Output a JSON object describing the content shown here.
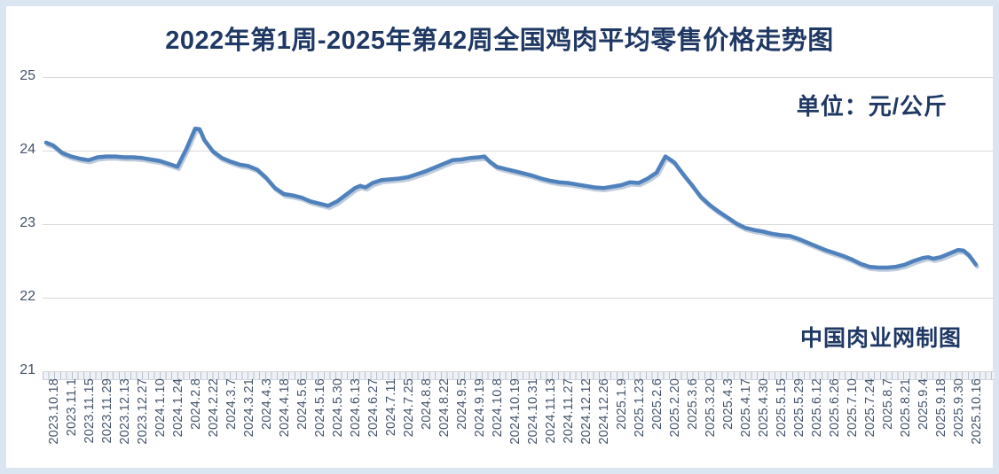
{
  "header": {
    "title": "2022年第1周-2025年第42周全国鸡肉平均零售价格走势图"
  },
  "annotations": {
    "unit": "单位：元/公斤",
    "credit": "中国肉业网制图"
  },
  "colors": {
    "title_text": "#1f3864",
    "line": "#4f81bd",
    "line_shadow": "#8aa3c0",
    "gridline": "#d9d9d9",
    "axis_text": "#44546a",
    "frame_border": "#dbe5f1",
    "background": "#ffffff"
  },
  "chart_data": {
    "type": "line",
    "title": "2022年第1周-2025年第42周全国鸡肉平均零售价格走势图",
    "xlabel": "",
    "ylabel": "元/公斤",
    "ylim": [
      21,
      25
    ],
    "yticks": [
      25,
      24,
      23,
      22,
      21
    ],
    "grid": "horizontal",
    "legend": "none",
    "categories": [
      "2023.10.18",
      "2023.11.1",
      "2023.11.15",
      "2023.11.29",
      "2023.12.13",
      "2023.12.27",
      "2024.1.10",
      "2024.1.24",
      "2024.2.8",
      "2024.2.22",
      "2024.3.7",
      "2024.3.21",
      "2024.4.3",
      "2024.4.18",
      "2024.5.6",
      "2024.5.16",
      "2024.5.30",
      "2024.6.13",
      "2024.6.27",
      "2024.7.11",
      "2024.7.25",
      "2024.8.8",
      "2024.8.22",
      "2024.9.5",
      "2024.9.19",
      "2024.10.8",
      "2024.10.19",
      "2024.10.31",
      "2024.11.13",
      "2024.11.27",
      "2024.12.12",
      "2024.12.26",
      "2025.1.9",
      "2025.1.23",
      "2025.2.6",
      "2025.2.20",
      "2025.3.6",
      "2025.3.20",
      "2025.4.3",
      "2025.4.17",
      "2025.4.30",
      "2025.5.15",
      "2025.5.29",
      "2025.6.12",
      "2025.6.26",
      "2025.7.10",
      "2025.7.24",
      "2025.8.7",
      "2025.8.21",
      "2025.9.4",
      "2025.9.18",
      "2025.9.30",
      "2025.10.16"
    ],
    "series": [
      {
        "name": "全国鸡肉平均零售价格",
        "points": [
          [
            -0.4,
            24.11
          ],
          [
            0,
            24.07
          ],
          [
            0.5,
            23.97
          ],
          [
            1,
            23.92
          ],
          [
            1.5,
            23.89
          ],
          [
            2,
            23.87
          ],
          [
            2.5,
            23.91
          ],
          [
            3,
            23.92
          ],
          [
            3.5,
            23.92
          ],
          [
            4,
            23.91
          ],
          [
            4.5,
            23.91
          ],
          [
            5,
            23.9
          ],
          [
            5.5,
            23.88
          ],
          [
            6,
            23.86
          ],
          [
            6.5,
            23.82
          ],
          [
            7,
            23.78
          ],
          [
            7.5,
            24.02
          ],
          [
            8,
            24.3
          ],
          [
            8.25,
            24.29
          ],
          [
            8.5,
            24.15
          ],
          [
            9,
            23.99
          ],
          [
            9.5,
            23.9
          ],
          [
            10,
            23.85
          ],
          [
            10.5,
            23.81
          ],
          [
            11,
            23.79
          ],
          [
            11.5,
            23.74
          ],
          [
            12,
            23.63
          ],
          [
            12.5,
            23.49
          ],
          [
            13,
            23.41
          ],
          [
            13.5,
            23.39
          ],
          [
            14,
            23.36
          ],
          [
            14.5,
            23.31
          ],
          [
            15,
            23.28
          ],
          [
            15.5,
            23.25
          ],
          [
            16,
            23.31
          ],
          [
            16.5,
            23.4
          ],
          [
            17,
            23.49
          ],
          [
            17.3,
            23.52
          ],
          [
            17.6,
            23.5
          ],
          [
            18,
            23.56
          ],
          [
            18.5,
            23.6
          ],
          [
            19,
            23.61
          ],
          [
            19.5,
            23.62
          ],
          [
            20,
            23.64
          ],
          [
            20.5,
            23.68
          ],
          [
            21,
            23.72
          ],
          [
            21.5,
            23.77
          ],
          [
            22,
            23.82
          ],
          [
            22.5,
            23.87
          ],
          [
            23,
            23.88
          ],
          [
            23.5,
            23.9
          ],
          [
            24,
            23.91
          ],
          [
            24.3,
            23.92
          ],
          [
            24.6,
            23.85
          ],
          [
            25,
            23.78
          ],
          [
            25.5,
            23.75
          ],
          [
            26,
            23.72
          ],
          [
            26.5,
            23.69
          ],
          [
            27,
            23.66
          ],
          [
            27.5,
            23.62
          ],
          [
            28,
            23.59
          ],
          [
            28.5,
            23.57
          ],
          [
            29,
            23.56
          ],
          [
            29.5,
            23.54
          ],
          [
            30,
            23.52
          ],
          [
            30.5,
            23.5
          ],
          [
            31,
            23.49
          ],
          [
            31.5,
            23.51
          ],
          [
            32,
            23.53
          ],
          [
            32.5,
            23.57
          ],
          [
            33,
            23.56
          ],
          [
            33.5,
            23.62
          ],
          [
            34,
            23.7
          ],
          [
            34.5,
            23.92
          ],
          [
            34.7,
            23.89
          ],
          [
            35,
            23.84
          ],
          [
            35.5,
            23.68
          ],
          [
            36,
            23.53
          ],
          [
            36.5,
            23.37
          ],
          [
            37,
            23.26
          ],
          [
            37.5,
            23.17
          ],
          [
            38,
            23.09
          ],
          [
            38.5,
            23.01
          ],
          [
            39,
            22.95
          ],
          [
            39.5,
            22.92
          ],
          [
            40,
            22.9
          ],
          [
            40.5,
            22.87
          ],
          [
            41,
            22.85
          ],
          [
            41.5,
            22.84
          ],
          [
            42,
            22.8
          ],
          [
            42.5,
            22.75
          ],
          [
            43,
            22.7
          ],
          [
            43.5,
            22.65
          ],
          [
            44,
            22.61
          ],
          [
            44.5,
            22.57
          ],
          [
            45,
            22.52
          ],
          [
            45.5,
            22.46
          ],
          [
            46,
            22.42
          ],
          [
            46.5,
            22.41
          ],
          [
            47,
            22.41
          ],
          [
            47.5,
            22.42
          ],
          [
            48,
            22.45
          ],
          [
            48.5,
            22.5
          ],
          [
            49,
            22.54
          ],
          [
            49.3,
            22.55
          ],
          [
            49.6,
            22.53
          ],
          [
            50,
            22.55
          ],
          [
            50.5,
            22.6
          ],
          [
            51,
            22.65
          ],
          [
            51.3,
            22.64
          ],
          [
            51.6,
            22.58
          ],
          [
            52,
            22.45
          ]
        ]
      }
    ]
  }
}
